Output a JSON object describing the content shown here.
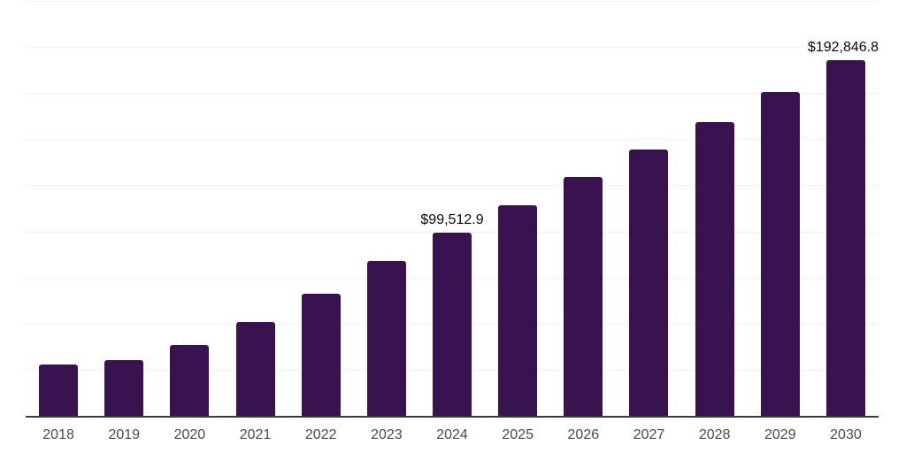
{
  "colors": {
    "background": "#ffffff",
    "bar": "#39134F",
    "axis_line": "#3b3b3b",
    "gridline": "#f2f2f2",
    "tick_label": "#4a4a4a",
    "data_label": "#0a0a0a"
  },
  "chart_data": {
    "type": "bar",
    "title": "",
    "xlabel": "",
    "ylabel": "",
    "categories": [
      "2018",
      "2019",
      "2020",
      "2021",
      "2022",
      "2023",
      "2024",
      "2025",
      "2026",
      "2027",
      "2028",
      "2029",
      "2030"
    ],
    "values": [
      28000,
      30200,
      38400,
      50700,
      66300,
      84100,
      99512.9,
      114300,
      129500,
      144400,
      159100,
      175400,
      192846.8
    ],
    "data_labels": [
      "",
      "",
      "",
      "",
      "",
      "",
      "$99,512.9",
      "",
      "",
      "",
      "",
      "",
      "$192,846.8"
    ],
    "ylim": [
      0,
      225000
    ],
    "gridline_step": 25000,
    "grid": "horizontal",
    "legend": "none",
    "y_axis_labels_visible": false,
    "bar_color": "#39134F"
  }
}
